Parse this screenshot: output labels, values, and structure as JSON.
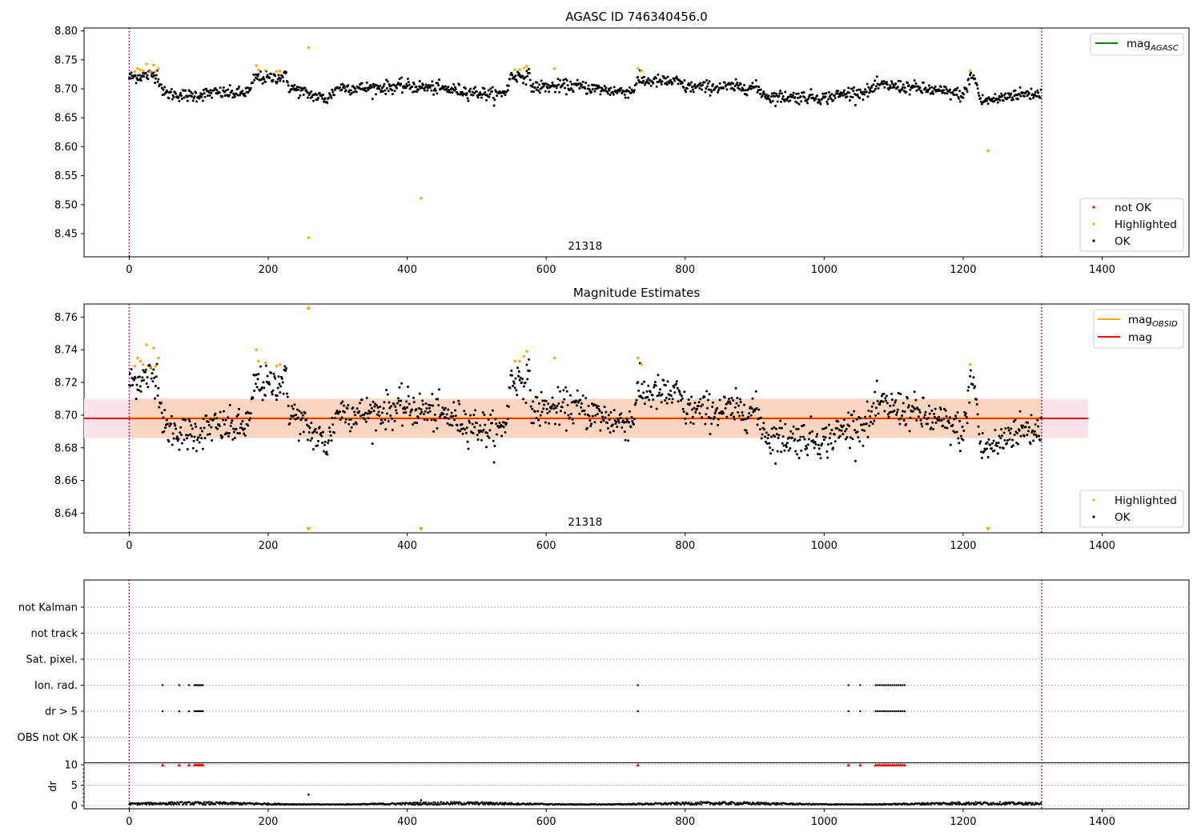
{
  "colors": {
    "ok": "#000000",
    "highlighted": "#ffa500",
    "not_ok": "#ff0000",
    "mag_agasc": "#008000",
    "mag_obsid": "#ffa500",
    "mag": "#ff0000",
    "obs_boundary": "#800080",
    "band_inner": "#fcd5c0",
    "band_outer": "#fde4e8"
  },
  "chart_data": [
    {
      "id": "panel1",
      "type": "scatter",
      "title": "AGASC ID 746340456.0",
      "xlim": [
        -65,
        1525
      ],
      "ylim": [
        8.41,
        8.805
      ],
      "x_ticks": [
        0,
        200,
        400,
        600,
        800,
        1000,
        1200,
        1400
      ],
      "y_ticks": [
        8.45,
        8.5,
        8.55,
        8.6,
        8.65,
        8.7,
        8.75,
        8.8
      ],
      "vertical_lines": [
        0,
        1313
      ],
      "obsid_annotation": {
        "text": "21318",
        "x": 656
      },
      "series": [
        {
          "name": "OK",
          "color": "#000000",
          "n_points": 1313,
          "typical_range": [
            8.67,
            8.72
          ]
        },
        {
          "name": "Highlighted",
          "color": "#ffa500",
          "points": [
            [
              8,
              8.73
            ],
            [
              12,
              8.735
            ],
            [
              16,
              8.733
            ],
            [
              20,
              8.731
            ],
            [
              25,
              8.743
            ],
            [
              30,
              8.729
            ],
            [
              35,
              8.741
            ],
            [
              38,
              8.73
            ],
            [
              42,
              8.735
            ],
            [
              183,
              8.74
            ],
            [
              186,
              8.733
            ],
            [
              196,
              8.732
            ],
            [
              212,
              8.73
            ],
            [
              217,
              8.731
            ],
            [
              258,
              8.771
            ],
            [
              258,
              8.443
            ],
            [
              420,
              8.511
            ],
            [
              555,
              8.733
            ],
            [
              562,
              8.733
            ],
            [
              568,
              8.736
            ],
            [
              572,
              8.739
            ],
            [
              612,
              8.735
            ],
            [
              732,
              8.735
            ],
            [
              737,
              8.731
            ],
            [
              1210,
              8.731
            ],
            [
              1236,
              8.593
            ]
          ]
        },
        {
          "name": "not OK",
          "color": "#ff0000",
          "points": []
        }
      ],
      "legend_top": [
        {
          "label": "mag",
          "sub": "AGASC",
          "color": "#008000"
        }
      ],
      "legend_bottom": [
        {
          "label": "not OK",
          "color": "#ff0000"
        },
        {
          "label": "Highlighted",
          "color": "#ffa500"
        },
        {
          "label": "OK",
          "color": "#000000"
        }
      ]
    },
    {
      "id": "panel2",
      "type": "scatter",
      "title": "Magnitude Estimates",
      "xlim": [
        -65,
        1525
      ],
      "ylim": [
        8.628,
        8.768
      ],
      "x_ticks": [
        0,
        200,
        400,
        600,
        800,
        1000,
        1200,
        1400
      ],
      "y_ticks": [
        8.64,
        8.66,
        8.68,
        8.7,
        8.72,
        8.74,
        8.76
      ],
      "vertical_lines": [
        0,
        1313
      ],
      "obsid_annotation": {
        "text": "21318",
        "x": 656
      },
      "mag_line": {
        "value": 8.698,
        "x_range": [
          -65,
          1380
        ]
      },
      "mag_band": {
        "low": 8.686,
        "high": 8.71,
        "x_range": [
          -65,
          1380
        ]
      },
      "mag_obsid_band": {
        "low": 8.686,
        "high": 8.71,
        "x_range": [
          0,
          1313
        ]
      },
      "series": [
        {
          "name": "OK",
          "color": "#000000",
          "n_points": 1313,
          "typical_range": [
            8.67,
            8.72
          ]
        },
        {
          "name": "Highlighted",
          "color": "#ffa500",
          "points": [
            [
              8,
              8.73
            ],
            [
              12,
              8.735
            ],
            [
              16,
              8.733
            ],
            [
              20,
              8.731
            ],
            [
              25,
              8.743
            ],
            [
              30,
              8.729
            ],
            [
              35,
              8.741
            ],
            [
              38,
              8.73
            ],
            [
              42,
              8.735
            ],
            [
              183,
              8.74
            ],
            [
              186,
              8.733
            ],
            [
              196,
              8.732
            ],
            [
              212,
              8.73
            ],
            [
              217,
              8.731
            ],
            [
              555,
              8.733
            ],
            [
              562,
              8.733
            ],
            [
              568,
              8.736
            ],
            [
              572,
              8.739
            ],
            [
              612,
              8.735
            ],
            [
              732,
              8.735
            ],
            [
              737,
              8.731
            ],
            [
              1210,
              8.731
            ]
          ]
        }
      ],
      "out_of_range_markers": {
        "up": [
          258
        ],
        "down": [
          258,
          420,
          1236
        ]
      },
      "legend_top": [
        {
          "label": "mag",
          "sub": "OBSID",
          "color": "#ffa500"
        },
        {
          "label": "mag",
          "sub": "",
          "color": "#ff0000"
        }
      ],
      "legend_bottom": [
        {
          "label": "Highlighted",
          "color": "#ffa500"
        },
        {
          "label": "OK",
          "color": "#000000"
        }
      ]
    },
    {
      "id": "panel3",
      "type": "scatter",
      "xlim": [
        -65,
        1525
      ],
      "x_ticks": [
        0,
        200,
        400,
        600,
        800,
        1000,
        1200,
        1400
      ],
      "vertical_lines": [
        0,
        1313
      ],
      "flag_categories": [
        "not Kalman",
        "not track",
        "Sat. pixel.",
        "Ion. rad.",
        "dr > 5",
        "OBS not OK"
      ],
      "flagged_x": [
        48,
        72,
        86,
        94,
        96,
        98,
        100,
        102,
        104,
        106,
        732,
        1035,
        1052,
        1074,
        1077,
        1080,
        1083,
        1086,
        1089,
        1092,
        1095,
        1098,
        1101,
        1104,
        1107,
        1110,
        1113,
        1116
      ],
      "flags": {
        "Ion. rad.": true,
        "dr > 5": true
      },
      "dr": {
        "ylabel": "dr",
        "y_ticks": [
          0,
          5,
          10
        ],
        "ylim": [
          -0.8,
          10.5
        ],
        "clip": 10,
        "baseline_typical": [
          0.2,
          0.9
        ],
        "spikes": [
          [
            258,
            2.7
          ],
          [
            420,
            1.3
          ]
        ]
      }
    }
  ]
}
